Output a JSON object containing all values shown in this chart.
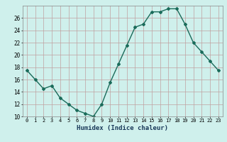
{
  "x": [
    0,
    1,
    2,
    3,
    4,
    5,
    6,
    7,
    8,
    9,
    10,
    11,
    12,
    13,
    14,
    15,
    16,
    17,
    18,
    19,
    20,
    21,
    22,
    23
  ],
  "y": [
    17.5,
    16.0,
    14.5,
    15.0,
    13.0,
    12.0,
    11.0,
    10.5,
    10.0,
    12.0,
    15.5,
    18.5,
    21.5,
    24.5,
    25.0,
    27.0,
    27.0,
    27.5,
    27.5,
    25.0,
    22.0,
    20.5,
    19.0,
    17.5
  ],
  "xlabel": "Humidex (Indice chaleur)",
  "ylabel": "",
  "ylim": [
    10,
    28
  ],
  "xlim": [
    -0.5,
    23.5
  ],
  "yticks": [
    10,
    12,
    14,
    16,
    18,
    20,
    22,
    24,
    26
  ],
  "xticks": [
    0,
    1,
    2,
    3,
    4,
    5,
    6,
    7,
    8,
    9,
    10,
    11,
    12,
    13,
    14,
    15,
    16,
    17,
    18,
    19,
    20,
    21,
    22,
    23
  ],
  "line_color": "#1a6b5a",
  "marker": "D",
  "marker_size": 2,
  "bg_color": "#cff0ec",
  "grid_color": "#c0a0a0",
  "line_width": 1.0
}
